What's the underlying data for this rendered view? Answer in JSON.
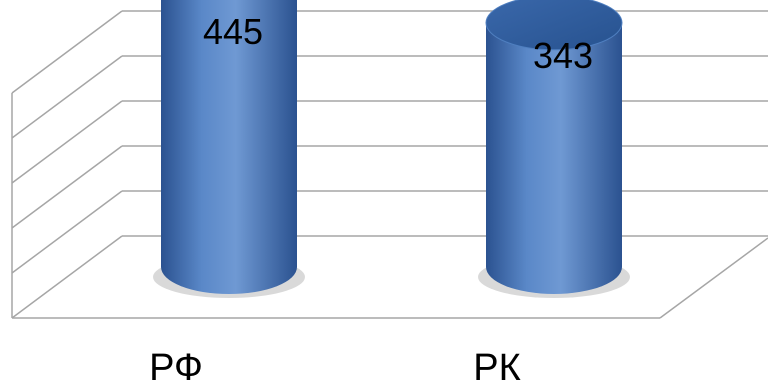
{
  "chart_data": {
    "type": "bar",
    "style": "3d-cylinder",
    "categories": [
      "РФ",
      "РК"
    ],
    "values": [
      445,
      343
    ],
    "data_labels": [
      "445",
      "343"
    ],
    "title": "",
    "xlabel": "",
    "ylabel": "",
    "ylim": [
      0,
      500
    ],
    "grid": true,
    "legend": "none",
    "colors": {
      "bar": "#4a78b9",
      "bar_dark": "#2b5290",
      "bar_light": "#6f99d3",
      "top": "#2f5da0",
      "grid": "#a6a6a6"
    }
  }
}
